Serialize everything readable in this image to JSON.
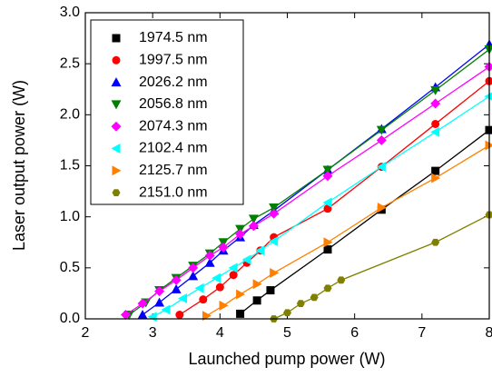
{
  "chart_data": {
    "type": "line",
    "x_label": "Launched pump power (W)",
    "y_label": "Laser output power (W)",
    "xlim": [
      2,
      8
    ],
    "xticks": [
      2,
      3,
      4,
      5,
      6,
      7,
      8
    ],
    "ylim": [
      0,
      3
    ],
    "yticks": [
      {
        "value": 0,
        "label": "0.0"
      },
      0.5,
      {
        "value": 1,
        "label": "1.0"
      },
      1.5,
      {
        "value": 2,
        "label": "2.0"
      },
      2.5,
      {
        "value": 3,
        "label": "3.0"
      }
    ],
    "legend": "upper left",
    "series": [
      {
        "name": "1974.5 nm",
        "color": "#000000",
        "marker": "square",
        "x": [
          4.3,
          4.55,
          4.75,
          5.6,
          6.4,
          7.2,
          8.0
        ],
        "values": [
          0.05,
          0.18,
          0.28,
          0.68,
          1.07,
          1.45,
          1.85
        ]
      },
      {
        "name": "1997.5 nm",
        "color": "#ff0000",
        "marker": "circle",
        "x": [
          3.4,
          3.75,
          4.0,
          4.2,
          4.4,
          4.6,
          4.8,
          5.6,
          6.4,
          7.2,
          8.0
        ],
        "values": [
          0.04,
          0.19,
          0.31,
          0.43,
          0.55,
          0.67,
          0.8,
          1.08,
          1.49,
          1.91,
          2.33
        ]
      },
      {
        "name": "2026.2 nm",
        "color": "#0000ff",
        "marker": "triangle-up",
        "x": [
          2.85,
          3.1,
          3.35,
          3.6,
          3.85,
          4.05,
          4.3,
          4.5,
          4.8,
          5.6,
          6.4,
          7.2,
          8.0
        ],
        "values": [
          0.04,
          0.16,
          0.29,
          0.42,
          0.55,
          0.67,
          0.8,
          0.92,
          1.06,
          1.46,
          1.86,
          2.27,
          2.69
        ]
      },
      {
        "name": "2056.8 nm",
        "color": "#008000",
        "marker": "triangle-down",
        "x": [
          2.65,
          2.9,
          3.1,
          3.35,
          3.6,
          3.85,
          4.05,
          4.3,
          4.5,
          4.8,
          5.6,
          6.4,
          7.2,
          8.0
        ],
        "values": [
          0.04,
          0.16,
          0.28,
          0.4,
          0.52,
          0.64,
          0.75,
          0.88,
          0.98,
          1.09,
          1.46,
          1.85,
          2.24,
          2.64
        ]
      },
      {
        "name": "2074.3 nm",
        "color": "#ff00ff",
        "marker": "diamond",
        "x": [
          2.6,
          2.85,
          3.1,
          3.35,
          3.6,
          3.85,
          4.05,
          4.3,
          4.5,
          4.8,
          5.6,
          6.4,
          7.2,
          8.0
        ],
        "values": [
          0.04,
          0.15,
          0.27,
          0.38,
          0.5,
          0.62,
          0.7,
          0.83,
          0.91,
          1.03,
          1.4,
          1.75,
          2.11,
          2.47
        ]
      },
      {
        "name": "2102.4 nm",
        "color": "#00ffff",
        "marker": "triangle-left",
        "x": [
          3.0,
          3.2,
          3.45,
          3.7,
          3.95,
          4.2,
          4.4,
          4.6,
          4.8,
          5.6,
          6.4,
          7.2,
          8.0
        ],
        "values": [
          0.02,
          0.09,
          0.2,
          0.3,
          0.4,
          0.5,
          0.58,
          0.67,
          0.76,
          1.14,
          1.49,
          1.83,
          2.18
        ]
      },
      {
        "name": "2125.7 nm",
        "color": "#ff8000",
        "marker": "triangle-right",
        "x": [
          3.8,
          4.05,
          4.3,
          4.55,
          4.8,
          5.6,
          6.4,
          7.2,
          8.0
        ],
        "values": [
          0.03,
          0.13,
          0.24,
          0.34,
          0.45,
          0.75,
          1.09,
          1.38,
          1.7
        ]
      },
      {
        "name": "2151.0 nm",
        "color": "#808000",
        "marker": "hexagon",
        "x": [
          4.8,
          5.0,
          5.2,
          5.4,
          5.6,
          5.8,
          7.2,
          8.0
        ],
        "values": [
          0.0,
          0.06,
          0.15,
          0.21,
          0.3,
          0.38,
          0.75,
          1.02
        ]
      }
    ]
  }
}
